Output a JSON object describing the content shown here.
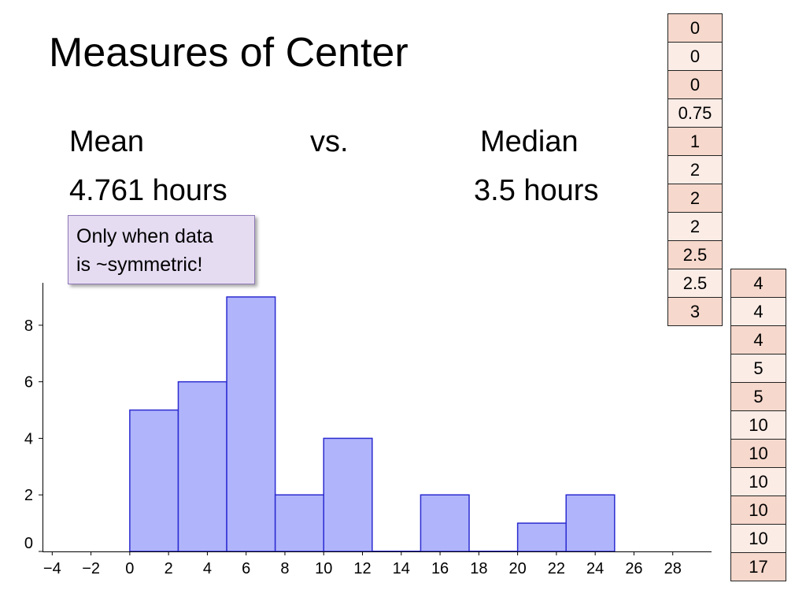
{
  "slide": {
    "title": "Measures of Center",
    "mean_label": "Mean",
    "vs_label": "vs.",
    "median_label": "Median",
    "mean_value": "4.761 hours",
    "median_value": "3.5 hours",
    "callout_line1": "Only when data",
    "callout_line2": "is ~symmetric!"
  },
  "data_table": {
    "column1": [
      "0",
      "0",
      "0",
      "0.75",
      "1",
      "2",
      "2",
      "2",
      "2.5",
      "2.5",
      "3"
    ],
    "column2": [
      "4",
      "4",
      "4",
      "5",
      "5",
      "10",
      "10",
      "10",
      "10",
      "10",
      "17"
    ],
    "cell_colors": [
      "#f6d8cc",
      "#fbece6"
    ]
  },
  "chart_data": {
    "type": "bar",
    "bars": [
      {
        "x0": 0,
        "x1": 2.5,
        "count": 5
      },
      {
        "x0": 2.5,
        "x1": 5,
        "count": 6
      },
      {
        "x0": 5,
        "x1": 7.5,
        "count": 9
      },
      {
        "x0": 7.5,
        "x1": 10,
        "count": 2
      },
      {
        "x0": 10,
        "x1": 12.5,
        "count": 4
      },
      {
        "x0": 12.5,
        "x1": 15,
        "count": 0
      },
      {
        "x0": 15,
        "x1": 17.5,
        "count": 2
      },
      {
        "x0": 17.5,
        "x1": 20,
        "count": 0
      },
      {
        "x0": 20,
        "x1": 22.5,
        "count": 1
      },
      {
        "x0": 22.5,
        "x1": 25,
        "count": 2
      }
    ],
    "xlim": [
      -4.5,
      30
    ],
    "ylim": [
      0,
      9.5
    ],
    "x_ticks": [
      "−4",
      "−2",
      "0",
      "2",
      "4",
      "6",
      "8",
      "10",
      "12",
      "14",
      "16",
      "18",
      "20",
      "22",
      "24",
      "26",
      "28"
    ],
    "x_tick_values": [
      -4,
      -2,
      0,
      2,
      4,
      6,
      8,
      10,
      12,
      14,
      16,
      18,
      20,
      22,
      24,
      26,
      28
    ],
    "y_ticks": [
      "0",
      "2",
      "4",
      "6",
      "8"
    ],
    "y_tick_values": [
      0,
      2,
      4,
      6,
      8
    ],
    "bar_fill": "#b0b4fb",
    "bar_stroke": "#2b2bd0",
    "grid": false,
    "title": "",
    "xlabel": "",
    "ylabel": ""
  }
}
